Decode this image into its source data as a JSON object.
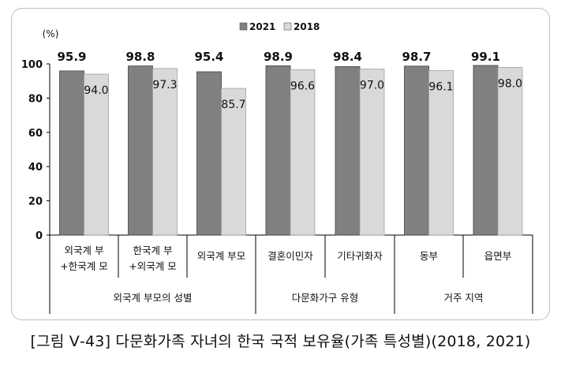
{
  "caption": "[그림 Ⅴ-43] 다문화가족 자녀의 한국 국적 보유율(가족 특성별)(2018, 2021)",
  "chart_data": {
    "type": "bar",
    "unit_label": "(%)",
    "ylim": [
      0,
      100
    ],
    "yticks": [
      0,
      20,
      40,
      60,
      80,
      100
    ],
    "grid": false,
    "legend_position": "top",
    "categories": [
      {
        "lines": [
          "외국계 부",
          "+한국계 모"
        ]
      },
      {
        "lines": [
          "한국계 부",
          "+외국계 모"
        ]
      },
      {
        "lines": [
          "외국계 부모"
        ]
      },
      {
        "lines": [
          "결혼이민자"
        ]
      },
      {
        "lines": [
          "기타귀화자"
        ]
      },
      {
        "lines": [
          "동부"
        ]
      },
      {
        "lines": [
          "읍면부"
        ]
      }
    ],
    "groups": [
      {
        "label": "외국계 부모의 성별",
        "start": 0,
        "end": 2
      },
      {
        "label": "다문화가구 유형",
        "start": 3,
        "end": 4
      },
      {
        "label": "거주 지역",
        "start": 5,
        "end": 6
      }
    ],
    "series": [
      {
        "name": "2021",
        "color": "#808080",
        "values": [
          95.9,
          98.8,
          95.4,
          98.9,
          98.4,
          98.7,
          99.1
        ],
        "labels": [
          "95.9",
          "98.8",
          "95.4",
          "98.9",
          "98.4",
          "98.7",
          "99.1"
        ]
      },
      {
        "name": "2018",
        "color": "#d9d9d9",
        "values": [
          94.0,
          97.3,
          85.7,
          96.6,
          97.0,
          96.1,
          98.0
        ],
        "labels": [
          "94.0",
          "97.3",
          "85.7",
          "96.6",
          "97.0",
          "96.1",
          "98.0"
        ]
      }
    ]
  }
}
